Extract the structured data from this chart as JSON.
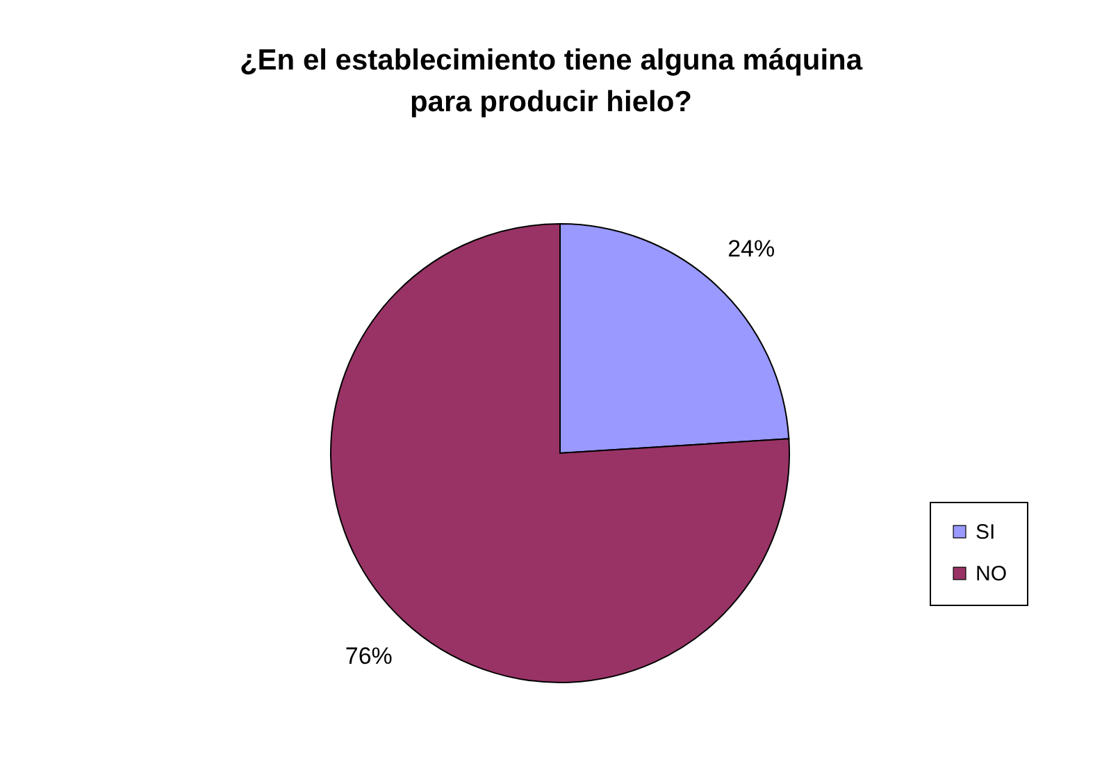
{
  "chart_data": {
    "type": "pie",
    "title": "¿En el establecimiento tiene alguna máquina para producir hielo?",
    "categories": [
      "SI",
      "NO"
    ],
    "values": [
      24,
      76
    ],
    "colors": [
      "#9999ff",
      "#993366"
    ],
    "value_labels": [
      "24%",
      "76%"
    ],
    "legend": "right"
  }
}
